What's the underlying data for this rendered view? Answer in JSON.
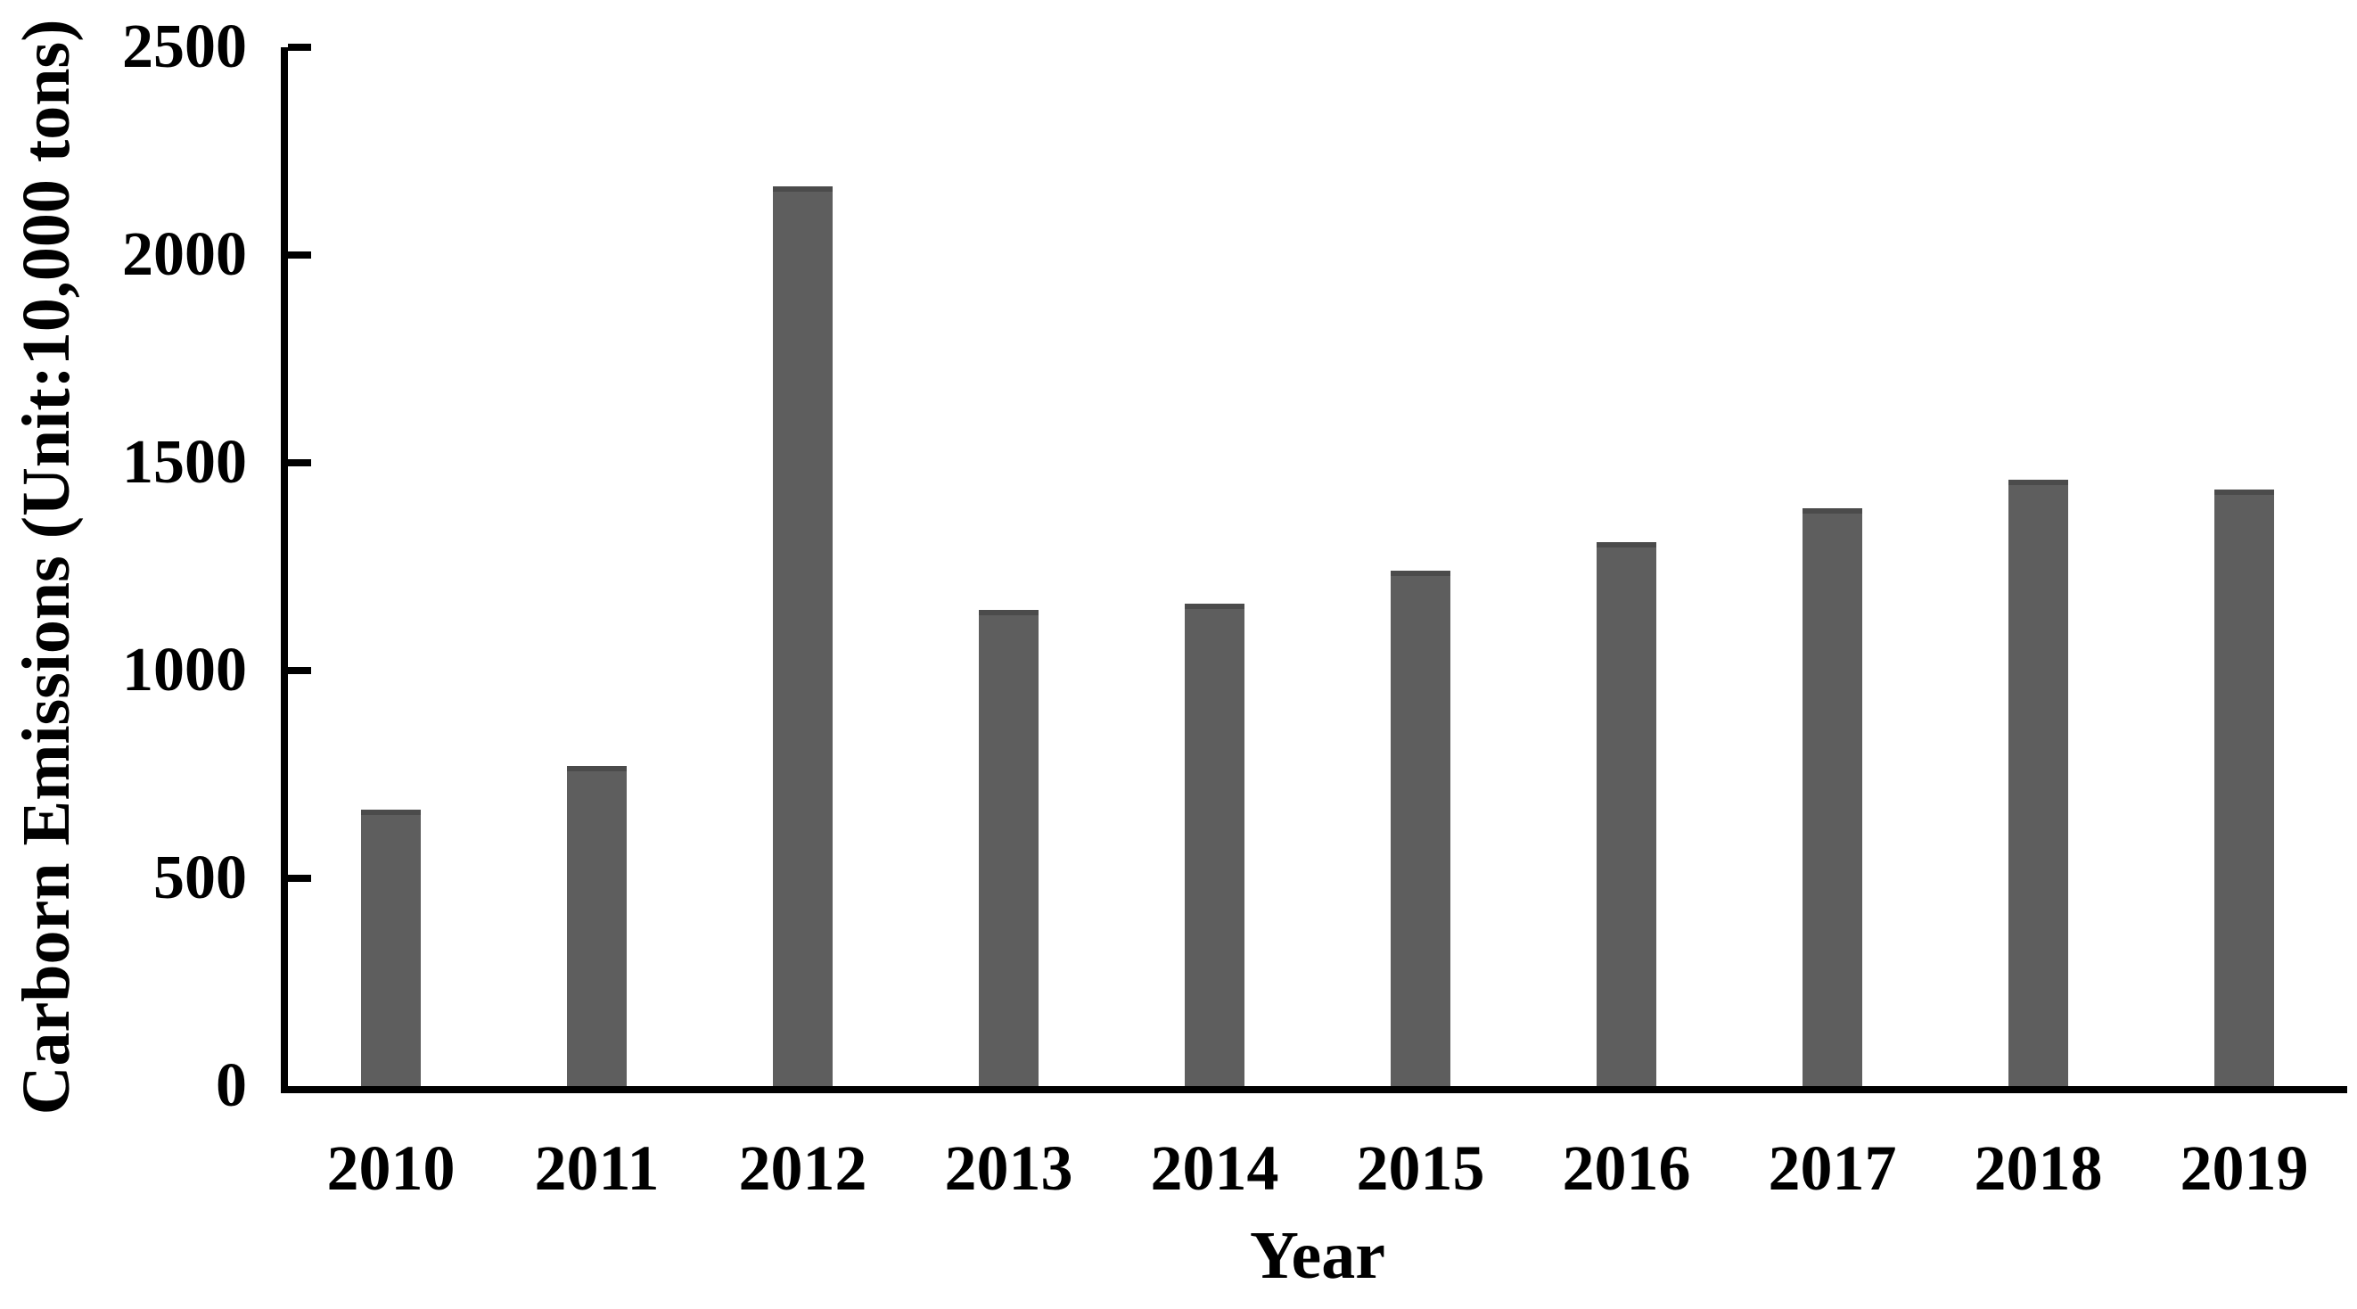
{
  "figure": {
    "background": "#ffffff"
  },
  "chart_data": {
    "type": "bar",
    "title": "",
    "categories": [
      "2010",
      "2011",
      "2012",
      "2013",
      "2014",
      "2015",
      "2016",
      "2017",
      "2018",
      "2019"
    ],
    "values": [
      665,
      770,
      2165,
      1145,
      1160,
      1240,
      1310,
      1390,
      1460,
      1435
    ],
    "xlabel": "Year",
    "ylabel": "Carborn Emissions (Unit:10,000 tons)",
    "ylim": [
      0,
      2500
    ],
    "yticks": [
      0,
      500,
      1000,
      1500,
      2000,
      2500
    ],
    "grid": false,
    "legend": "none",
    "bar_color": "#5e5e5e",
    "bar_edge_color": "#4b4b4b",
    "axis_color": "#000000",
    "label_color": "#000000"
  }
}
